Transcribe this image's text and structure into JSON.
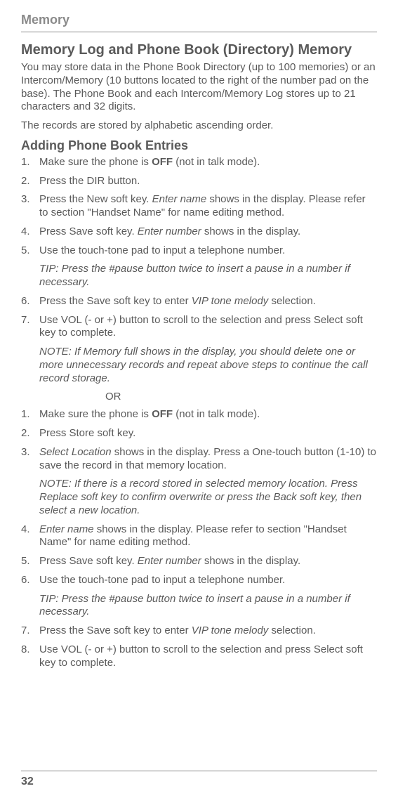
{
  "runningHead": "Memory",
  "sectionTitle": "Memory Log and Phone Book (Directory) Memory",
  "intro1": "You may store data in the Phone Book Directory (up to 100 memories) or an Intercom/Memory (10 buttons located to the right of the number pad on the base). The Phone Book and each Intercom/Memory Log stores up to 21 characters and 32 digits.",
  "intro2": "The records are stored by alphabetic ascending order.",
  "subTitle": "Adding Phone Book Entries",
  "list1": {
    "i1a": "Make sure the phone is ",
    "i1b": "OFF",
    "i1c": " (not in talk mode).",
    "i2": "Press the DIR button.",
    "i3a": "Press the New soft key. ",
    "i3b": "Enter name",
    "i3c": " shows in the display. Please refer to section \"Handset Name\" for name editing method.",
    "i4a": "Press Save soft key. ",
    "i4b": "Enter number",
    "i4c": " shows in the display.",
    "i5": "Use the touch-tone pad to input a telephone number.",
    "tip1": "TIP: Press the #pause button twice to insert a pause in a number if necessary.",
    "i6a": "Press the Save soft key to enter ",
    "i6b": "VIP tone melody",
    "i6c": " selection.",
    "i7": "Use VOL (- or +) button to scroll to the selection and press Select soft key to complete.",
    "note1": "NOTE: If Memory full shows in the display, you should delete one or more unnecessary records and repeat above steps to continue the call record storage."
  },
  "or": "OR",
  "list2": {
    "i1a": "Make sure the phone is ",
    "i1b": "OFF",
    "i1c": " (not in talk mode).",
    "i2": "Press Store soft key.",
    "i3a": "Select Location",
    "i3b": " shows in the display. Press a One-touch button (1-10) to save the record in that memory location.",
    "note2": "NOTE: If there is a record stored in selected memory location. Press Replace soft key to confirm overwrite or press the Back soft key, then select a new location.",
    "i4a": "Enter name",
    "i4b": " shows in the display. Please refer to section \"Handset Name\" for name editing method.",
    "i5a": "Press Save soft key. ",
    "i5b": "Enter number",
    "i5c": " shows in the display.",
    "i6": "Use the touch-tone pad to input a telephone number.",
    "tip2": "TIP: Press the #pause button twice to insert a pause in a number if necessary.",
    "i7a": "Press the Save soft key to enter ",
    "i7b": "VIP tone melody",
    "i7c": " selection.",
    "i8": "Use VOL (- or +) button to scroll to the selection and press Select soft key to complete."
  },
  "pageNum": "32"
}
